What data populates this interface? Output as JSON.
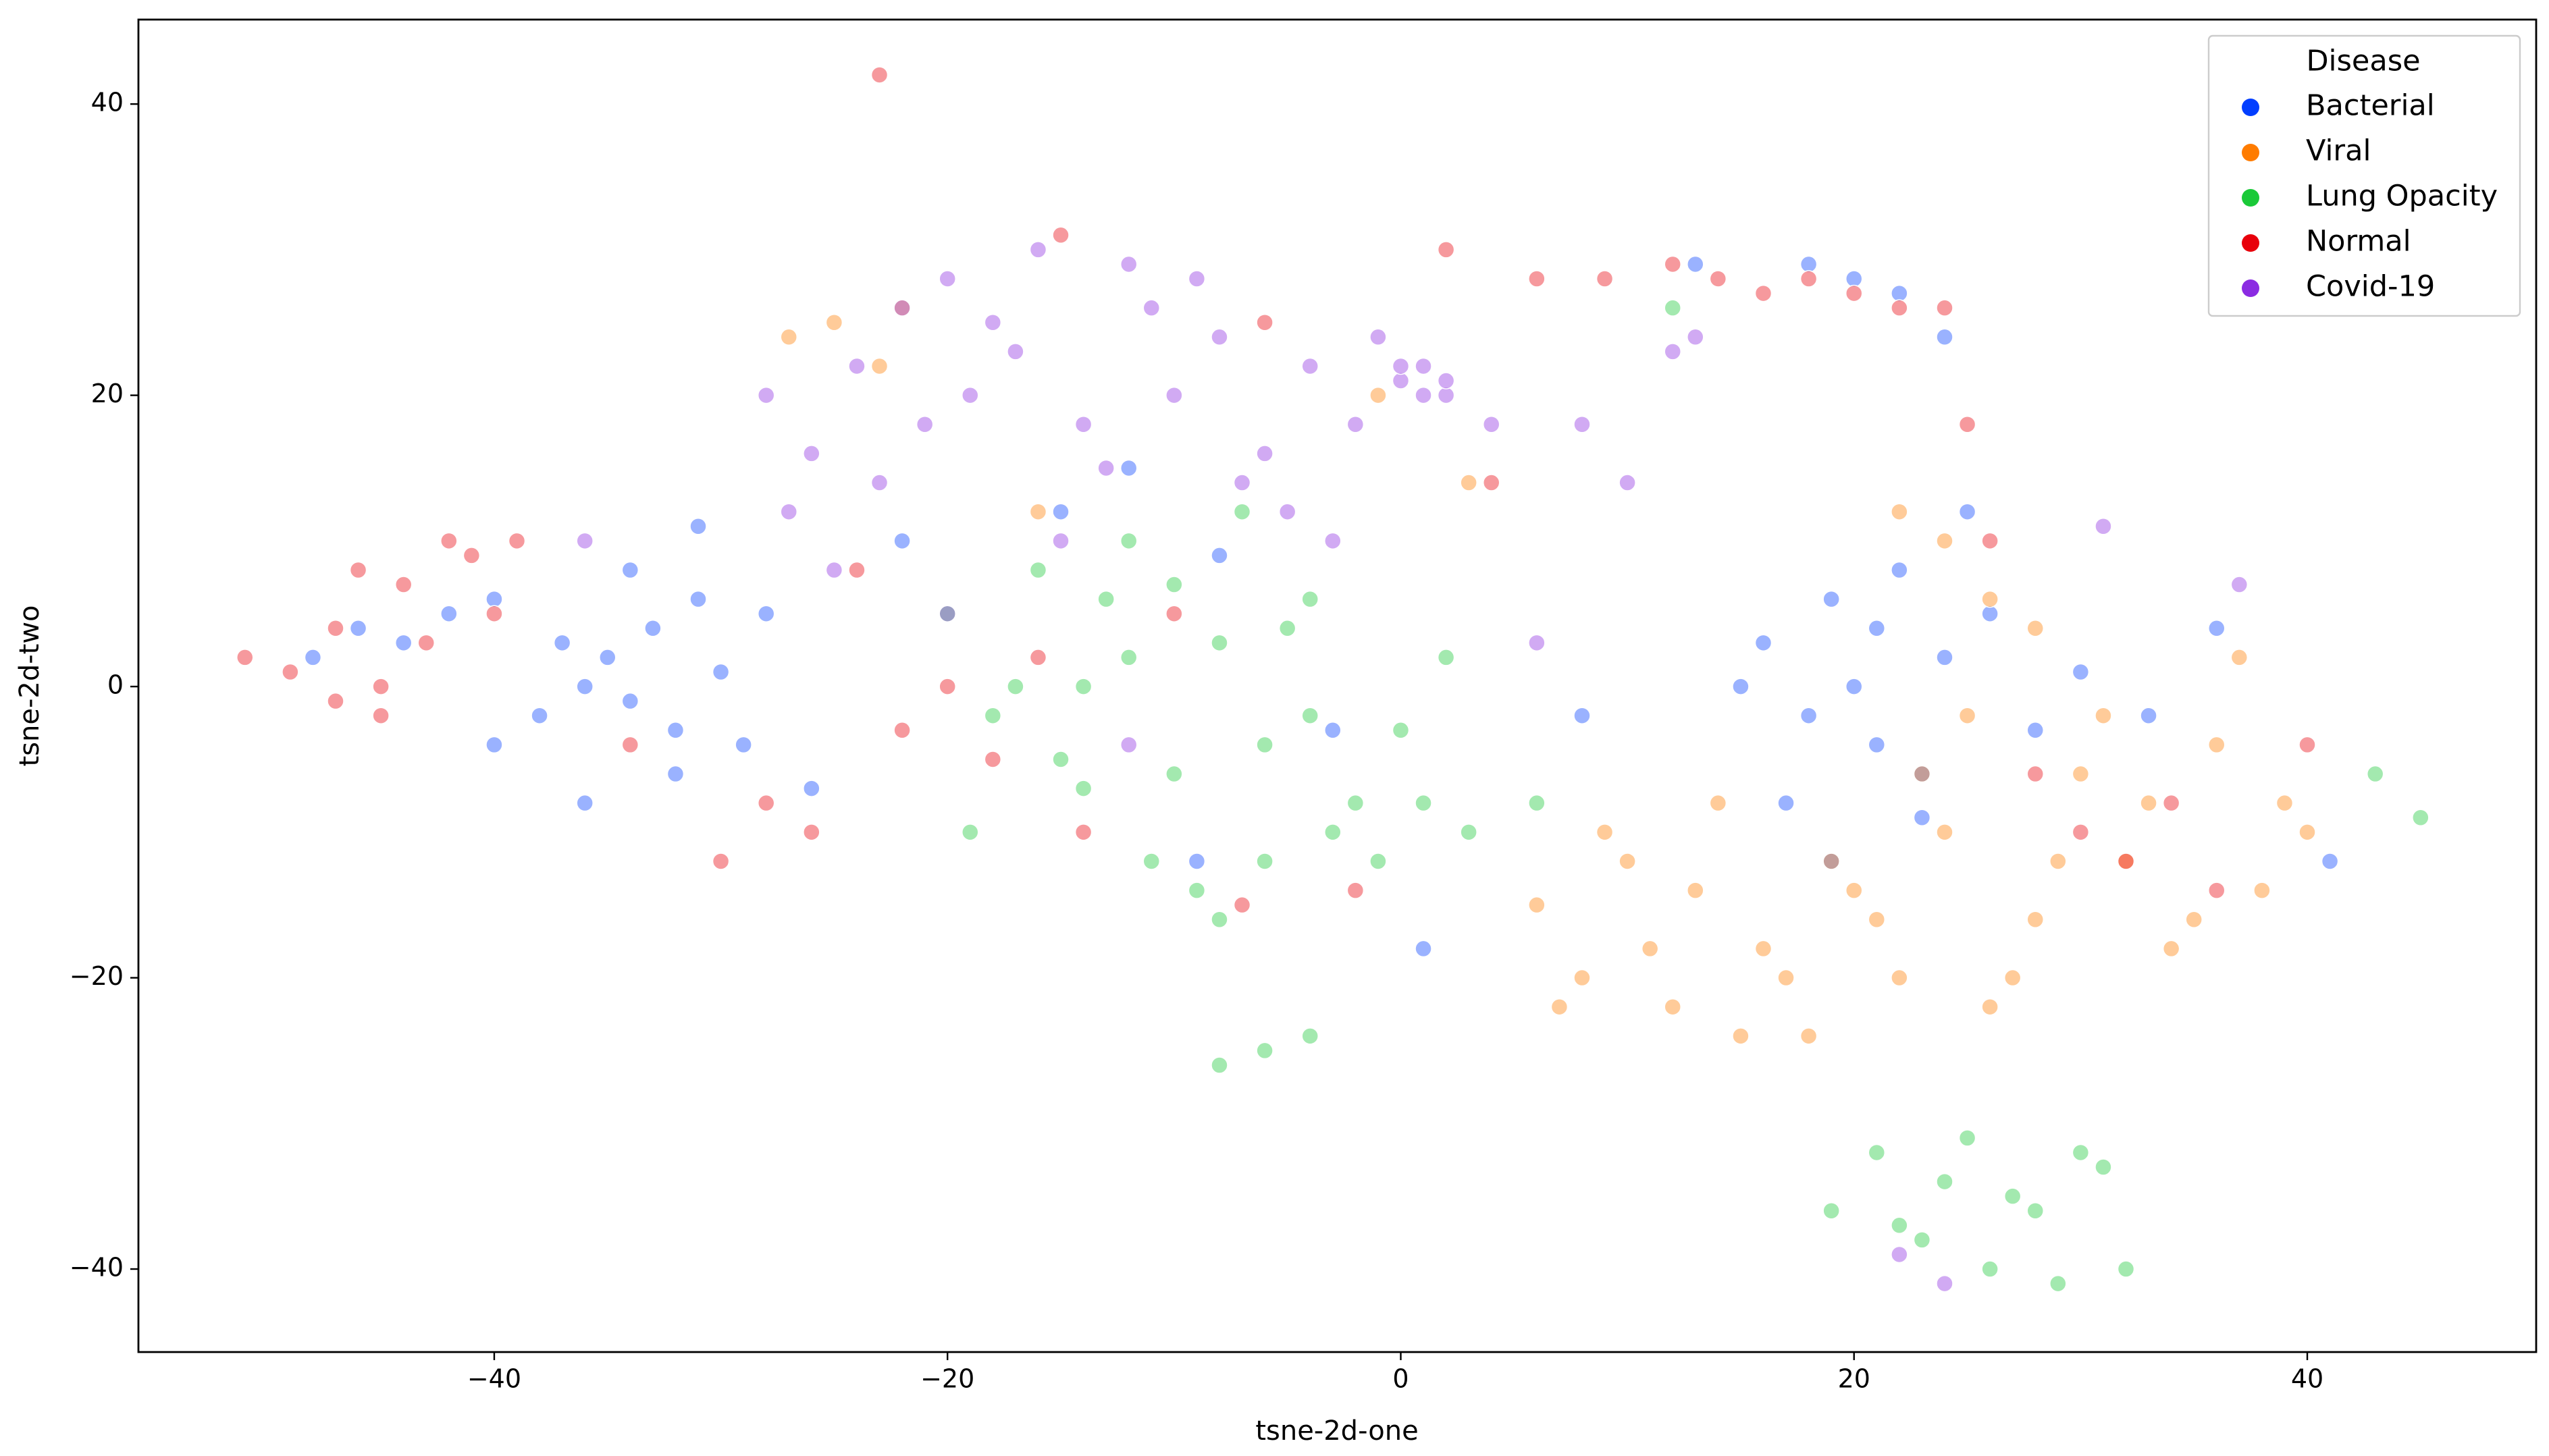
{
  "chart_data": {
    "type": "scatter",
    "xlabel": "tsne-2d-one",
    "ylabel": "tsne-2d-two",
    "xlim": [
      -55.7,
      50.1
    ],
    "ylim": [
      -45.7,
      45.8
    ],
    "xticks": [
      {
        "value": -40,
        "label": "−40"
      },
      {
        "value": -20,
        "label": "−20"
      },
      0,
      20,
      40
    ],
    "yticks": [
      {
        "value": -40,
        "label": "−40"
      },
      {
        "value": -20,
        "label": "−20"
      },
      0,
      20,
      40
    ],
    "legend_title": "Disease",
    "legend_position": "upper right",
    "grid": false,
    "series": [
      {
        "name": "Bacterial",
        "color": "#023eff",
        "x": [
          -48,
          -46,
          -44,
          -42,
          -40,
          -38,
          -36,
          -35,
          -34,
          -33,
          -32,
          -31,
          -30,
          -29,
          -36,
          -34,
          -32,
          -37,
          -28,
          -26,
          -22,
          -15,
          -8,
          -3,
          -12,
          16,
          18,
          19,
          20,
          21,
          22,
          23,
          24,
          25,
          17,
          19,
          21,
          23,
          26,
          28,
          30,
          33,
          36,
          18,
          20,
          22,
          13,
          15,
          24,
          -31,
          -40,
          -9,
          1,
          8,
          41
        ],
        "values": [
          2,
          4,
          3,
          5,
          6,
          -2,
          0,
          2,
          -1,
          4,
          -3,
          6,
          1,
          -4,
          -8,
          8,
          -6,
          3,
          5,
          -7,
          10,
          12,
          9,
          -3,
          15,
          3,
          -2,
          6,
          0,
          -4,
          8,
          -9,
          2,
          12,
          -8,
          -12,
          4,
          -6,
          5,
          -3,
          1,
          -2,
          4,
          29,
          28,
          27,
          29,
          0,
          24,
          11,
          -4,
          -12,
          -18,
          -2,
          -12
        ]
      },
      {
        "name": "Viral",
        "color": "#ff7c00",
        "x": [
          6,
          8,
          10,
          12,
          14,
          16,
          18,
          20,
          22,
          24,
          26,
          28,
          30,
          32,
          34,
          36,
          38,
          40,
          7,
          11,
          15,
          19,
          23,
          27,
          31,
          35,
          39,
          9,
          13,
          17,
          21,
          25,
          29,
          33,
          37,
          24,
          26,
          22,
          28,
          -27,
          -25,
          -23,
          -22,
          -16,
          -1,
          3
        ],
        "values": [
          -15,
          -20,
          -12,
          -22,
          -8,
          -18,
          -24,
          -14,
          -20,
          -10,
          -22,
          -16,
          -6,
          -12,
          -18,
          -4,
          -14,
          -10,
          -22,
          -18,
          -24,
          -12,
          -6,
          -20,
          -2,
          -16,
          -8,
          -10,
          -14,
          -20,
          -16,
          -2,
          -12,
          -8,
          2,
          10,
          6,
          12,
          4,
          24,
          25,
          22,
          26,
          12,
          20,
          14
        ]
      },
      {
        "name": "Lung Opacity",
        "color": "#1ac938",
        "x": [
          -20,
          -18,
          -16,
          -14,
          -12,
          -10,
          -8,
          -6,
          -4,
          -2,
          0,
          2,
          -19,
          -15,
          -11,
          -7,
          -3,
          1,
          -17,
          -13,
          -9,
          -5,
          -1,
          3,
          -14,
          -10,
          -6,
          -8,
          -12,
          -4,
          -8,
          -6,
          -4,
          19,
          21,
          23,
          25,
          27,
          29,
          31,
          22,
          24,
          26,
          28,
          30,
          32,
          43,
          45,
          12,
          6
        ],
        "values": [
          5,
          -2,
          8,
          0,
          10,
          -6,
          3,
          -12,
          6,
          -8,
          -3,
          2,
          -10,
          -5,
          -12,
          12,
          -10,
          -8,
          0,
          6,
          -14,
          4,
          -12,
          -10,
          -7,
          7,
          -4,
          -16,
          2,
          -2,
          -26,
          -25,
          -24,
          -36,
          -32,
          -38,
          -31,
          -35,
          -41,
          -33,
          -37,
          -34,
          -40,
          -36,
          -32,
          -40,
          -6,
          -9,
          26,
          -8
        ]
      },
      {
        "name": "Normal",
        "color": "#e8000b",
        "x": [
          -51,
          -49,
          -47,
          -46,
          -45,
          -44,
          -43,
          -42,
          -41,
          -40,
          -39,
          -45,
          -47,
          -34,
          -30,
          -28,
          -26,
          -24,
          -22,
          -20,
          -18,
          -16,
          -14,
          -10,
          -6,
          -2,
          2,
          4,
          6,
          9,
          12,
          14,
          16,
          18,
          20,
          22,
          24,
          25,
          26,
          28,
          30,
          32,
          34,
          36,
          40,
          -23,
          -15,
          -7
        ],
        "values": [
          2,
          1,
          4,
          8,
          -2,
          7,
          3,
          10,
          9,
          5,
          10,
          0,
          -1,
          -4,
          -12,
          -8,
          -10,
          8,
          -3,
          0,
          -5,
          2,
          -10,
          5,
          25,
          -14,
          30,
          14,
          28,
          28,
          29,
          28,
          27,
          28,
          27,
          26,
          26,
          18,
          10,
          -6,
          -10,
          -12,
          -8,
          -14,
          -4,
          42,
          31,
          -15
        ]
      },
      {
        "name": "Covid-19",
        "color": "#8b2be2",
        "x": [
          -28,
          -26,
          -24,
          -22,
          -20,
          -18,
          -16,
          -14,
          -12,
          -10,
          -8,
          -6,
          -4,
          -2,
          0,
          2,
          4,
          -27,
          -23,
          -19,
          -15,
          -11,
          -7,
          -3,
          1,
          -25,
          -21,
          -17,
          -13,
          -9,
          -5,
          -1,
          1,
          2,
          0,
          8,
          10,
          12,
          13,
          22,
          24,
          31,
          37,
          -36,
          -20,
          -12,
          6
        ],
        "values": [
          20,
          16,
          22,
          26,
          28,
          25,
          30,
          18,
          29,
          20,
          24,
          16,
          22,
          18,
          21,
          20,
          18,
          12,
          14,
          20,
          10,
          26,
          14,
          10,
          22,
          8,
          18,
          23,
          15,
          28,
          12,
          24,
          20,
          21,
          22,
          18,
          14,
          23,
          24,
          -39,
          -41,
          11,
          7,
          10,
          5,
          -4,
          3
        ]
      }
    ]
  }
}
